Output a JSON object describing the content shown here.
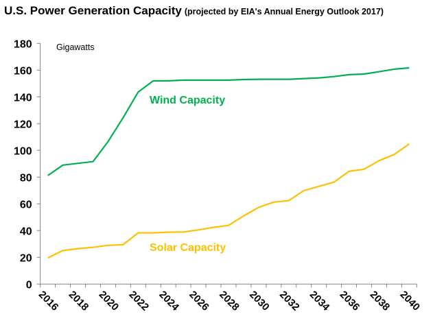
{
  "title": "U.S. Power Generation Capacity",
  "subtitle": "(projected by EIA's Annual Energy Outlook 2017)",
  "chart_data": {
    "type": "line",
    "title": "U.S. Power Generation Capacity",
    "subtitle": "(projected by EIA's Annual Energy Outlook 2017)",
    "unit_label": "Gigawatts",
    "xlabel": "",
    "ylabel": "",
    "ylim": [
      0,
      180
    ],
    "yticks": [
      0,
      20,
      40,
      60,
      80,
      100,
      120,
      140,
      160,
      180
    ],
    "x": [
      2016,
      2017,
      2018,
      2019,
      2020,
      2021,
      2022,
      2023,
      2024,
      2025,
      2026,
      2027,
      2028,
      2029,
      2030,
      2031,
      2032,
      2033,
      2034,
      2035,
      2036,
      2037,
      2038,
      2039,
      2040
    ],
    "xtick_labels": [
      "2016",
      "2018",
      "2020",
      "2022",
      "2024",
      "2026",
      "2028",
      "2030",
      "2032",
      "2034",
      "2036",
      "2038",
      "2040"
    ],
    "grid": false,
    "legend": "inline labels",
    "series": [
      {
        "name": "Wind Capacity",
        "color": "#00B050",
        "values": [
          81.2,
          89.0,
          90.3,
          91.6,
          106.5,
          124.4,
          143.6,
          152.0,
          152.0,
          152.5,
          152.5,
          152.5,
          152.5,
          153.0,
          153.2,
          153.2,
          153.2,
          153.7,
          154.2,
          155.2,
          156.6,
          157.1,
          158.8,
          160.7,
          161.7
        ]
      },
      {
        "name": "Solar Capacity",
        "color": "#FFC000",
        "values": [
          19.6,
          25.1,
          26.5,
          27.5,
          29.0,
          29.5,
          38.3,
          38.3,
          38.8,
          38.9,
          40.5,
          42.4,
          43.9,
          50.9,
          57.4,
          61.3,
          62.4,
          69.9,
          73.1,
          76.2,
          84.3,
          85.9,
          92.3,
          96.9,
          104.8
        ]
      }
    ]
  }
}
